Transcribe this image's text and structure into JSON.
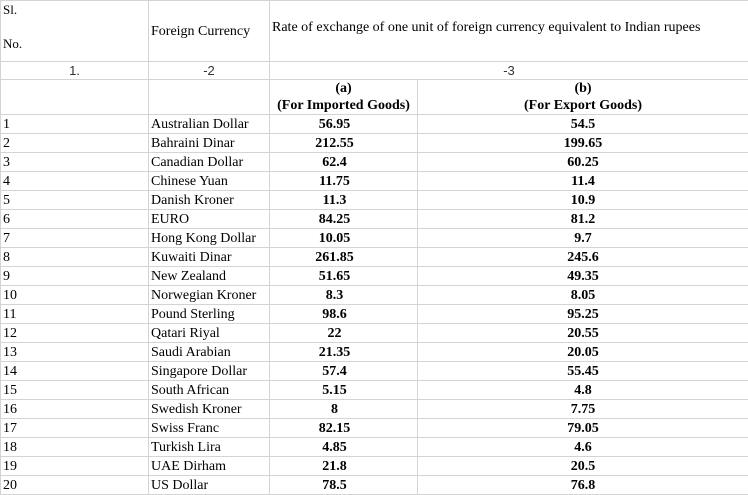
{
  "header": {
    "sl_label_line1": "Sl.",
    "sl_label_line2": "No.",
    "currency_label": "Foreign Currency",
    "rate_label": "Rate of exchange of one unit of foreign currency equivalent to Indian rupees"
  },
  "column_numbers": {
    "sl": "1.",
    "currency": "-2",
    "rate": "-3"
  },
  "subheaders": {
    "imported": {
      "letter": "(a)",
      "desc": "(For Imported Goods)"
    },
    "export": {
      "letter": "(b)",
      "desc": "(For Export Goods)"
    }
  },
  "rows": [
    {
      "sl": "1",
      "currency": "Australian Dollar",
      "imported": "56.95",
      "export": "54.5"
    },
    {
      "sl": "2",
      "currency": "Bahraini Dinar",
      "imported": "212.55",
      "export": "199.65"
    },
    {
      "sl": "3",
      "currency": "Canadian Dollar",
      "imported": "62.4",
      "export": "60.25"
    },
    {
      "sl": "4",
      "currency": "Chinese Yuan",
      "imported": "11.75",
      "export": "11.4"
    },
    {
      "sl": "5",
      "currency": "Danish Kroner",
      "imported": "11.3",
      "export": "10.9"
    },
    {
      "sl": "6",
      "currency": "EURO",
      "imported": "84.25",
      "export": "81.2"
    },
    {
      "sl": "7",
      "currency": "Hong Kong Dollar",
      "imported": "10.05",
      "export": "9.7"
    },
    {
      "sl": "8",
      "currency": "Kuwaiti Dinar",
      "imported": "261.85",
      "export": "245.6"
    },
    {
      "sl": "9",
      "currency": "New Zealand",
      "imported": "51.65",
      "export": "49.35"
    },
    {
      "sl": "10",
      "currency": "Norwegian Kroner",
      "imported": "8.3",
      "export": "8.05"
    },
    {
      "sl": "11",
      "currency": "Pound Sterling",
      "imported": "98.6",
      "export": "95.25"
    },
    {
      "sl": "12",
      "currency": "Qatari Riyal",
      "imported": "22",
      "export": "20.55"
    },
    {
      "sl": "13",
      "currency": "Saudi Arabian",
      "imported": "21.35",
      "export": "20.05"
    },
    {
      "sl": "14",
      "currency": "Singapore Dollar",
      "imported": "57.4",
      "export": "55.45"
    },
    {
      "sl": "15",
      "currency": "South African",
      "imported": "5.15",
      "export": "4.8"
    },
    {
      "sl": "16",
      "currency": "Swedish Kroner",
      "imported": "8",
      "export": "7.75"
    },
    {
      "sl": "17",
      "currency": "Swiss Franc",
      "imported": "82.15",
      "export": "79.05"
    },
    {
      "sl": "18",
      "currency": "Turkish Lira",
      "imported": "4.85",
      "export": "4.6"
    },
    {
      "sl": "19",
      "currency": "UAE Dirham",
      "imported": "21.8",
      "export": "20.5"
    },
    {
      "sl": "20",
      "currency": "US Dollar",
      "imported": "78.5",
      "export": "76.8"
    }
  ]
}
